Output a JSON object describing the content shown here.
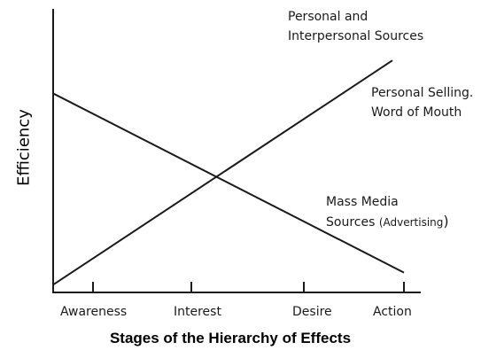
{
  "chart_data": {
    "type": "line",
    "xlabel": "Stages of the Hierarchy of Effects",
    "ylabel": "Efficiency",
    "categories": [
      "Awareness",
      "Interest",
      "Desire",
      "Action"
    ],
    "series": [
      {
        "name": "Personal and Interpersonal Sources",
        "values": [
          1.2,
          4.05,
          5.7,
          8.45
        ],
        "color": "#1a1a1a"
      },
      {
        "name": "Mass Media Sources (Advertising)",
        "values": [
          6.3,
          4.05,
          2.2,
          0.7
        ],
        "color": "#1a1a1a"
      }
    ],
    "annotations": {
      "personal_line1": "Personal and",
      "personal_line2": "Interpersonal Sources",
      "selling_line1": "Personal Selling.",
      "selling_line2": "Word of Mouth",
      "mass_line1": "Mass Media",
      "mass_line2_main": "Sources",
      "mass_line2_paren": "(Advertising",
      "mass_line2_close": ")"
    },
    "ylim": [
      0,
      10
    ],
    "grid": false,
    "axis_ticks": true,
    "ytick_labels": false
  }
}
